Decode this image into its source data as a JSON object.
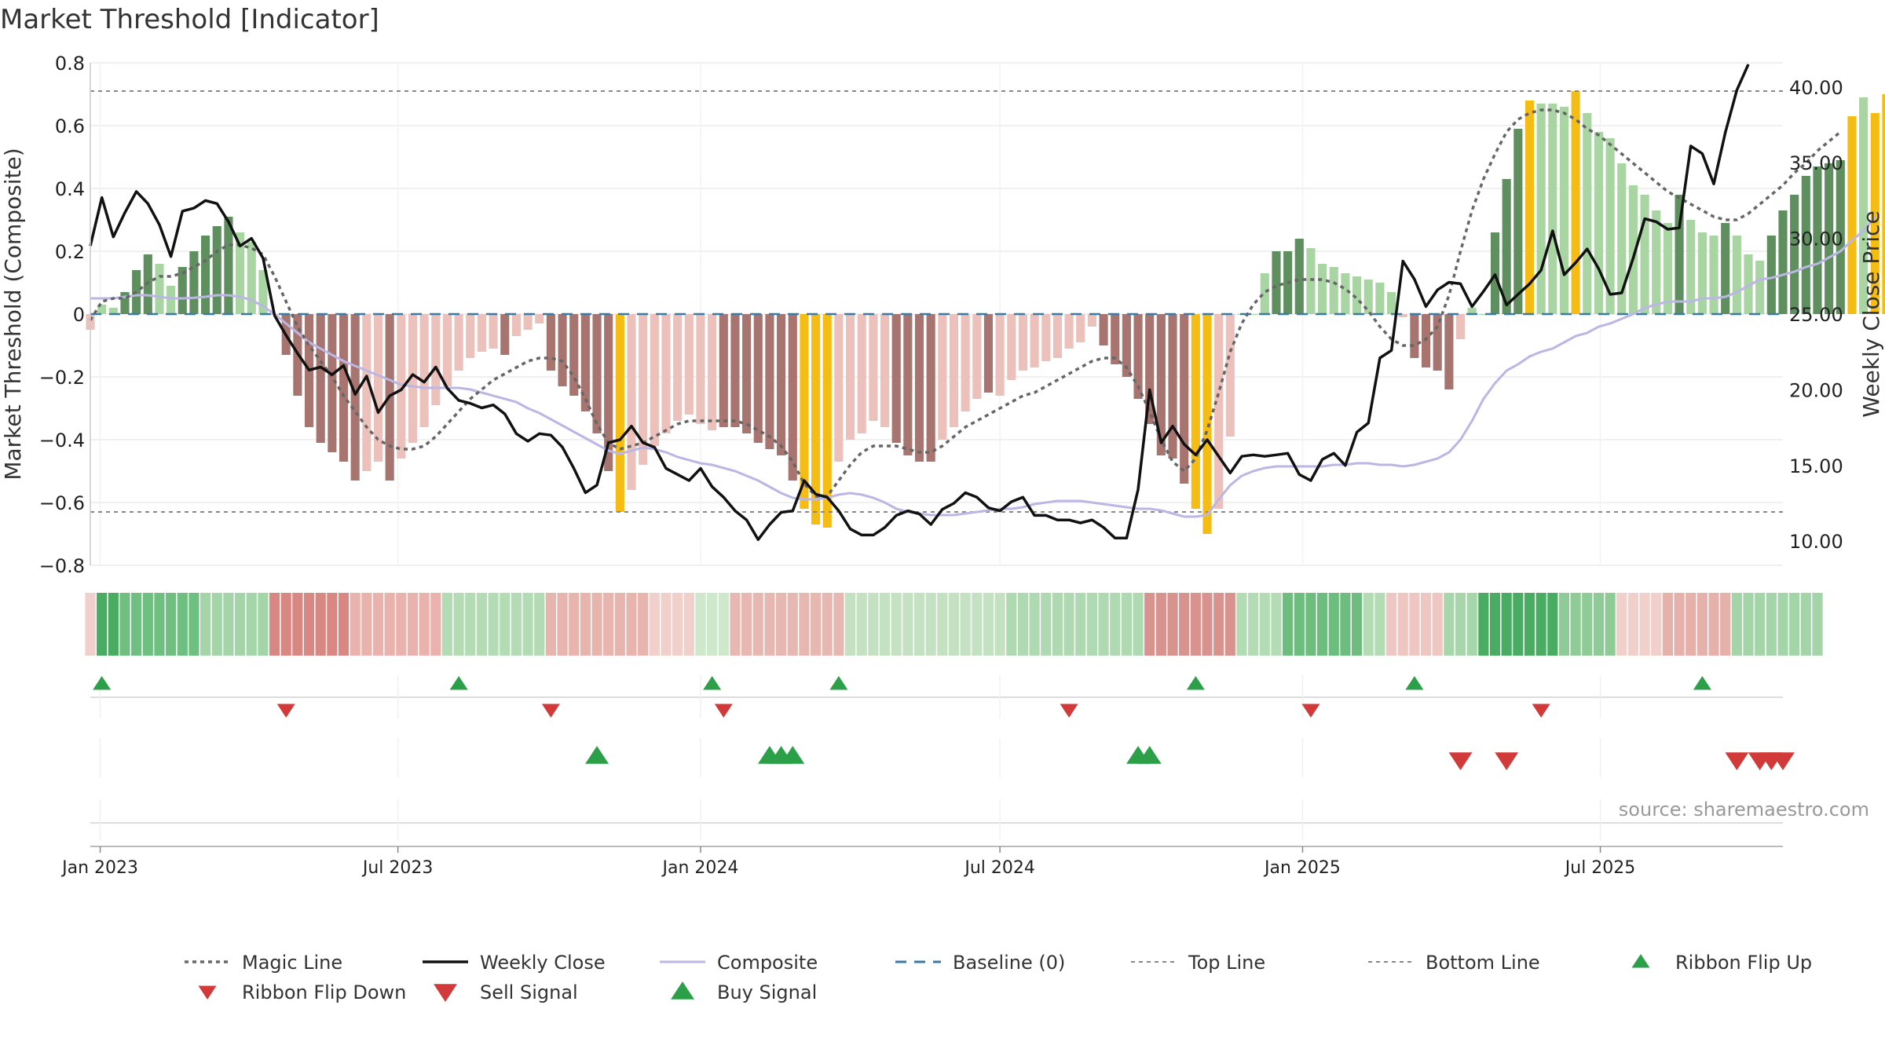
{
  "chart_data": {
    "type": "bar",
    "title": "Market Threshold [Indicator]",
    "ylabel": "Market Threshold (Composite)",
    "y2label": "Weekly Close Price",
    "source": "source: sharemaestro.com",
    "ylim": [
      -0.8,
      0.8
    ],
    "y2lim": [
      8.4,
      41.6
    ],
    "xlim": [
      "2022-12-26",
      "2025-10-20"
    ],
    "grid": true,
    "legend_position": "bottom-center",
    "y_ticks": [
      "0.8",
      "0.6",
      "0.4",
      "0.2",
      "0",
      "−0.2",
      "−0.4",
      "−0.6",
      "−0.8"
    ],
    "y_tick_values": [
      0.8,
      0.6,
      0.4,
      0.2,
      0,
      -0.2,
      -0.4,
      -0.6,
      -0.8
    ],
    "y2_ticks": [
      "40.00",
      "35.00",
      "30.00",
      "25.00",
      "20.00",
      "15.00",
      "10.00"
    ],
    "y2_tick_values": [
      40,
      35,
      30,
      25,
      20,
      15,
      10
    ],
    "x_ticks": [
      "Jan 2023",
      "Jul 2023",
      "Jan 2024",
      "Jul 2024",
      "Jan 2025",
      "Jul 2025"
    ],
    "x_tick_dates": [
      "2023-01-01",
      "2023-07-01",
      "2024-01-01",
      "2024-07-01",
      "2025-01-01",
      "2025-07-01"
    ],
    "start_date": "2022-12-26",
    "top_line": 0.71,
    "bottom_line": -0.63,
    "colors": {
      "strong_pos": "#5f8f5f",
      "weak_pos": "#a8d5a2",
      "strong_neg": "#a87470",
      "weak_neg": "#ecc1bb",
      "extreme": "#f5bd14",
      "close": "#111111",
      "composite": "#bcb6e4",
      "magic": "#666666",
      "baseline": "#3a7aa8",
      "up_marker": "#2ca048",
      "down_marker": "#d23a3a"
    },
    "composite_bars": [
      -0.05,
      0.03,
      0.02,
      0.07,
      0.14,
      0.19,
      0.16,
      0.09,
      0.15,
      0.2,
      0.25,
      0.28,
      0.31,
      0.26,
      0.23,
      0.14,
      0,
      -0.13,
      -0.26,
      -0.36,
      -0.41,
      -0.44,
      -0.47,
      -0.53,
      -0.5,
      -0.47,
      -0.53,
      -0.46,
      -0.41,
      -0.36,
      -0.29,
      -0.23,
      -0.18,
      -0.14,
      -0.12,
      -0.11,
      -0.13,
      -0.07,
      -0.05,
      -0.03,
      -0.18,
      -0.23,
      -0.26,
      -0.31,
      -0.38,
      -0.5,
      -0.63,
      -0.56,
      -0.48,
      -0.42,
      -0.38,
      -0.34,
      -0.32,
      -0.35,
      -0.37,
      -0.36,
      -0.36,
      -0.38,
      -0.41,
      -0.43,
      -0.45,
      -0.53,
      -0.62,
      -0.67,
      -0.68,
      -0.47,
      -0.4,
      -0.38,
      -0.34,
      -0.36,
      -0.41,
      -0.45,
      -0.47,
      -0.47,
      -0.4,
      -0.36,
      -0.31,
      -0.27,
      -0.25,
      -0.26,
      -0.21,
      -0.18,
      -0.17,
      -0.15,
      -0.14,
      -0.11,
      -0.09,
      -0.04,
      -0.1,
      -0.16,
      -0.2,
      -0.27,
      -0.35,
      -0.45,
      -0.46,
      -0.54,
      -0.62,
      -0.7,
      -0.62,
      -0.39,
      0,
      0,
      0.13,
      0.2,
      0.2,
      0.24,
      0.21,
      0.16,
      0.15,
      0.13,
      0.12,
      0.11,
      0.1,
      0.07,
      -0.01,
      -0.14,
      -0.17,
      -0.18,
      -0.24,
      -0.08,
      0.02,
      0,
      0.26,
      0.43,
      0.59,
      0.68,
      0.67,
      0.67,
      0.66,
      0.71,
      0.64,
      0.58,
      0.56,
      0.48,
      0.41,
      0.38,
      0.33,
      0.29,
      0.38,
      0.3,
      0.26,
      0.25,
      0.29,
      0.25,
      0.19,
      0.17,
      0.25,
      0.33,
      0.38,
      0.44,
      0.47,
      0.48,
      0.49,
      0.63,
      0.69,
      0.64,
      0.7,
      0.75
    ],
    "bar_classes": [
      "wn",
      "wp",
      "wp",
      "sp",
      "sp",
      "sp",
      "wp",
      "wp",
      "sp",
      "sp",
      "sp",
      "sp",
      "sp",
      "wp",
      "wp",
      "wp",
      "wn",
      "sn",
      "sn",
      "sn",
      "sn",
      "sn",
      "sn",
      "sn",
      "wn",
      "wn",
      "sn",
      "wn",
      "wn",
      "wn",
      "wn",
      "wn",
      "wn",
      "wn",
      "wn",
      "wn",
      "sn",
      "wn",
      "wn",
      "wn",
      "sn",
      "sn",
      "sn",
      "sn",
      "sn",
      "sn",
      "ex",
      "wn",
      "wn",
      "wn",
      "wn",
      "wn",
      "wn",
      "wn",
      "wn",
      "sn",
      "sn",
      "sn",
      "sn",
      "sn",
      "sn",
      "sn",
      "ex",
      "ex",
      "ex",
      "wn",
      "wn",
      "wn",
      "wn",
      "wn",
      "sn",
      "sn",
      "sn",
      "sn",
      "wn",
      "wn",
      "wn",
      "wn",
      "sn",
      "wn",
      "wn",
      "wn",
      "wn",
      "wn",
      "wn",
      "wn",
      "wn",
      "wn",
      "sn",
      "sn",
      "sn",
      "sn",
      "sn",
      "sn",
      "sn",
      "sn",
      "ex",
      "ex",
      "wn",
      "wn",
      "wp",
      "wp",
      "wp",
      "sp",
      "sp",
      "sp",
      "wp",
      "wp",
      "wp",
      "wp",
      "wp",
      "wp",
      "wp",
      "wp",
      "wn",
      "sn",
      "sn",
      "sn",
      "sn",
      "wn",
      "wp",
      "wp",
      "sp",
      "sp",
      "sp",
      "ex",
      "wp",
      "wp",
      "wp",
      "ex",
      "wp",
      "wp",
      "wp",
      "wp",
      "wp",
      "wp",
      "wp",
      "wp",
      "sp",
      "wp",
      "wp",
      "wp",
      "sp",
      "wp",
      "wp",
      "wp",
      "sp",
      "sp",
      "sp",
      "sp",
      "sp",
      "sp",
      "sp",
      "ex",
      "wp",
      "ex",
      "ex"
    ],
    "weekly_close": [
      29.5,
      32.7,
      30.1,
      31.7,
      33.1,
      32.3,
      30.9,
      28.8,
      31.8,
      32.0,
      32.5,
      32.3,
      31.1,
      29.5,
      30.0,
      28.7,
      24.9,
      23.6,
      22.4,
      21.3,
      21.5,
      21.0,
      21.6,
      19.7,
      20.9,
      18.5,
      19.6,
      20.0,
      21.0,
      20.5,
      21.5,
      20.1,
      19.3,
      19.1,
      18.8,
      19.0,
      18.4,
      17.1,
      16.6,
      17.1,
      17.0,
      16.2,
      14.8,
      13.2,
      13.7,
      16.5,
      16.7,
      17.6,
      16.5,
      16.2,
      14.8,
      14.4,
      14.0,
      14.8,
      13.6,
      12.9,
      12.0,
      11.4,
      10.1,
      11.1,
      11.9,
      12.0,
      14.0,
      13.1,
      12.9,
      12.0,
      10.8,
      10.4,
      10.4,
      10.9,
      11.7,
      12.0,
      11.8,
      11.1,
      12.1,
      12.5,
      13.2,
      12.9,
      12.2,
      12.0,
      12.6,
      12.9,
      11.7,
      11.7,
      11.4,
      11.4,
      11.2,
      11.4,
      10.9,
      10.2,
      10.2,
      13.4,
      20.0,
      16.5,
      17.6,
      16.4,
      15.7,
      16.7,
      15.6,
      14.5,
      15.6,
      15.7,
      15.6,
      15.7,
      15.8,
      14.4,
      14.0,
      15.4,
      15.8,
      15.0,
      17.2,
      17.8,
      22.1,
      22.6,
      28.5,
      27.3,
      25.5,
      26.6,
      27.1,
      27.0,
      25.5,
      26.5,
      27.6,
      25.6,
      26.3,
      27.0,
      27.9,
      30.5,
      27.6,
      28.4,
      29.3,
      28.0,
      26.3,
      26.4,
      28.7,
      31.3,
      31.1,
      30.6,
      30.7,
      36.1,
      35.6,
      33.6,
      37.0,
      39.8,
      41.5
    ],
    "composite_line": [
      0.05,
      0.05,
      0.05,
      0.055,
      0.06,
      0.06,
      0.055,
      0.05,
      0.05,
      0.052,
      0.055,
      0.06,
      0.06,
      0.055,
      0.045,
      0.025,
      0,
      -0.03,
      -0.06,
      -0.09,
      -0.11,
      -0.13,
      -0.15,
      -0.165,
      -0.18,
      -0.195,
      -0.21,
      -0.225,
      -0.23,
      -0.235,
      -0.235,
      -0.235,
      -0.235,
      -0.24,
      -0.25,
      -0.26,
      -0.27,
      -0.28,
      -0.3,
      -0.315,
      -0.335,
      -0.355,
      -0.375,
      -0.395,
      -0.415,
      -0.435,
      -0.445,
      -0.435,
      -0.425,
      -0.43,
      -0.44,
      -0.455,
      -0.465,
      -0.475,
      -0.48,
      -0.49,
      -0.5,
      -0.515,
      -0.53,
      -0.55,
      -0.57,
      -0.585,
      -0.59,
      -0.59,
      -0.585,
      -0.575,
      -0.57,
      -0.575,
      -0.585,
      -0.6,
      -0.62,
      -0.63,
      -0.635,
      -0.64,
      -0.64,
      -0.64,
      -0.635,
      -0.63,
      -0.625,
      -0.62,
      -0.62,
      -0.615,
      -0.605,
      -0.6,
      -0.595,
      -0.595,
      -0.595,
      -0.6,
      -0.605,
      -0.61,
      -0.615,
      -0.62,
      -0.62,
      -0.625,
      -0.635,
      -0.645,
      -0.645,
      -0.64,
      -0.59,
      -0.545,
      -0.515,
      -0.5,
      -0.49,
      -0.485,
      -0.485,
      -0.485,
      -0.485,
      -0.485,
      -0.48,
      -0.48,
      -0.475,
      -0.475,
      -0.48,
      -0.48,
      -0.485,
      -0.48,
      -0.47,
      -0.46,
      -0.44,
      -0.4,
      -0.34,
      -0.27,
      -0.22,
      -0.18,
      -0.16,
      -0.135,
      -0.12,
      -0.11,
      -0.09,
      -0.07,
      -0.06,
      -0.04,
      -0.03,
      -0.015,
      0,
      0.02,
      0.03,
      0.04,
      0.04,
      0.04,
      0.05,
      0.05,
      0.055,
      0.07,
      0.09,
      0.11,
      0.115,
      0.125,
      0.135,
      0.15,
      0.16,
      0.18,
      0.2,
      0.235,
      0.265,
      0.31
    ],
    "magic_line": [
      -0.02,
      0.04,
      0.05,
      0.05,
      0.07,
      0.1,
      0.12,
      0.12,
      0.13,
      0.15,
      0.17,
      0.2,
      0.22,
      0.22,
      0.21,
      0.19,
      0.12,
      0.04,
      -0.04,
      -0.1,
      -0.15,
      -0.2,
      -0.26,
      -0.31,
      -0.36,
      -0.4,
      -0.42,
      -0.43,
      -0.43,
      -0.42,
      -0.39,
      -0.35,
      -0.31,
      -0.27,
      -0.24,
      -0.21,
      -0.19,
      -0.17,
      -0.15,
      -0.14,
      -0.14,
      -0.15,
      -0.2,
      -0.27,
      -0.35,
      -0.41,
      -0.43,
      -0.42,
      -0.41,
      -0.39,
      -0.37,
      -0.35,
      -0.34,
      -0.34,
      -0.34,
      -0.34,
      -0.34,
      -0.35,
      -0.37,
      -0.39,
      -0.42,
      -0.47,
      -0.54,
      -0.58,
      -0.58,
      -0.53,
      -0.48,
      -0.44,
      -0.42,
      -0.42,
      -0.42,
      -0.43,
      -0.44,
      -0.44,
      -0.42,
      -0.39,
      -0.36,
      -0.34,
      -0.32,
      -0.3,
      -0.28,
      -0.26,
      -0.25,
      -0.23,
      -0.21,
      -0.19,
      -0.17,
      -0.15,
      -0.14,
      -0.14,
      -0.17,
      -0.23,
      -0.31,
      -0.4,
      -0.47,
      -0.5,
      -0.46,
      -0.37,
      -0.25,
      -0.12,
      -0.03,
      0.03,
      0.07,
      0.09,
      0.1,
      0.11,
      0.11,
      0.11,
      0.1,
      0.08,
      0.05,
      0.01,
      -0.04,
      -0.08,
      -0.1,
      -0.1,
      -0.08,
      -0.04,
      0.06,
      0.2,
      0.33,
      0.43,
      0.51,
      0.58,
      0.62,
      0.64,
      0.65,
      0.65,
      0.64,
      0.62,
      0.59,
      0.57,
      0.54,
      0.51,
      0.48,
      0.45,
      0.42,
      0.39,
      0.37,
      0.35,
      0.33,
      0.31,
      0.3,
      0.3,
      0.32,
      0.35,
      0.38,
      0.41,
      0.45,
      0.48,
      0.52,
      0.55,
      0.58
    ],
    "ribbon": [
      {
        "from": 0,
        "to": 1,
        "color": "#f1cfcb"
      },
      {
        "from": 1,
        "to": 3,
        "color": "#4aac62"
      },
      {
        "from": 3,
        "to": 10,
        "color": "#6fbf80"
      },
      {
        "from": 10,
        "to": 16,
        "color": "#a4d5a8"
      },
      {
        "from": 16,
        "to": 23,
        "color": "#d98783"
      },
      {
        "from": 23,
        "to": 31,
        "color": "#e9b2ac"
      },
      {
        "from": 31,
        "to": 40,
        "color": "#b3dcb4"
      },
      {
        "from": 40,
        "to": 49,
        "color": "#e8b4ae"
      },
      {
        "from": 49,
        "to": 53,
        "color": "#f1cfcb"
      },
      {
        "from": 53,
        "to": 56,
        "color": "#cde8cb"
      },
      {
        "from": 56,
        "to": 66,
        "color": "#e7b8b2"
      },
      {
        "from": 66,
        "to": 80,
        "color": "#c4e2c2"
      },
      {
        "from": 80,
        "to": 92,
        "color": "#afd9b0"
      },
      {
        "from": 92,
        "to": 100,
        "color": "#d8938f"
      },
      {
        "from": 100,
        "to": 104,
        "color": "#b3dcb4"
      },
      {
        "from": 104,
        "to": 111,
        "color": "#6cbd7e"
      },
      {
        "from": 111,
        "to": 113,
        "color": "#b3dcb4"
      },
      {
        "from": 113,
        "to": 118,
        "color": "#efc7c2"
      },
      {
        "from": 118,
        "to": 121,
        "color": "#a6d6a9"
      },
      {
        "from": 121,
        "to": 128,
        "color": "#4aac62"
      },
      {
        "from": 128,
        "to": 133,
        "color": "#8ecb97"
      },
      {
        "from": 133,
        "to": 137,
        "color": "#f1cfcb"
      },
      {
        "from": 137,
        "to": 143,
        "color": "#e6b1ab"
      },
      {
        "from": 143,
        "to": 151,
        "color": "#a4d5a8"
      }
    ],
    "ribbon_flip_up": [
      1,
      32,
      54,
      65,
      96,
      115,
      140
    ],
    "ribbon_flip_down": [
      17,
      40,
      55,
      85,
      106,
      126
    ],
    "buy_signals": [
      44,
      59,
      60,
      61,
      91,
      92
    ],
    "sell_signals": [
      119,
      123,
      143,
      145,
      146,
      147
    ],
    "legend": [
      {
        "label": "Magic Line",
        "kind": "dotted",
        "color": "#666666"
      },
      {
        "label": "Weekly Close",
        "kind": "solid",
        "color": "#111111"
      },
      {
        "label": "Composite",
        "kind": "solid-light",
        "color": "#bcb6e4"
      },
      {
        "label": "Baseline (0)",
        "kind": "dashed",
        "color": "#3a7aa8"
      },
      {
        "label": "Top Line",
        "kind": "dotted-thin",
        "color": "#888888"
      },
      {
        "label": "Bottom Line",
        "kind": "dotted-thin",
        "color": "#888888"
      },
      {
        "label": "Ribbon Flip Up",
        "kind": "tri-up",
        "color": "#2ca048"
      },
      {
        "label": "Ribbon Flip Down",
        "kind": "tri-down",
        "color": "#d23a3a"
      },
      {
        "label": "Sell Signal",
        "kind": "tri-down-big",
        "color": "#d23a3a"
      },
      {
        "label": "Buy Signal",
        "kind": "tri-up-big",
        "color": "#2ca048"
      }
    ]
  }
}
